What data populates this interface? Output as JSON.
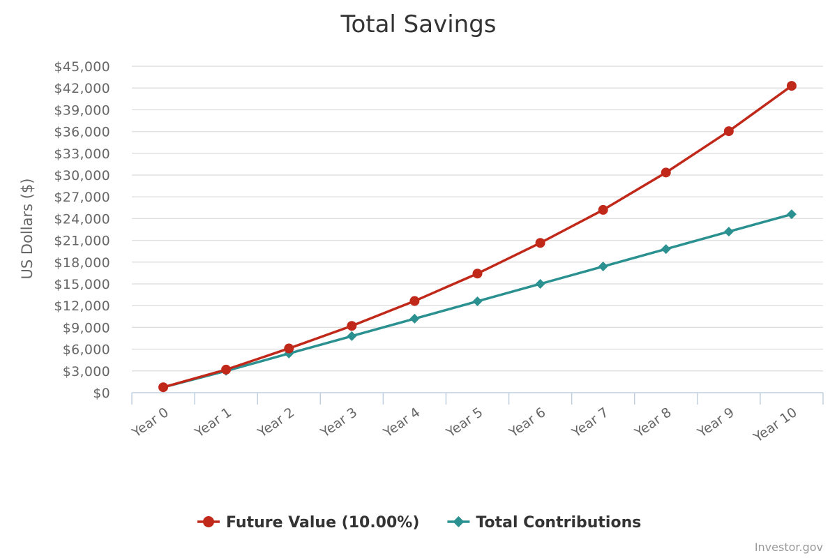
{
  "chart_data": {
    "type": "line",
    "title": "Total Savings",
    "xlabel": "",
    "ylabel": "US Dollars ($)",
    "categories": [
      "Year 0",
      "Year 1",
      "Year 2",
      "Year 3",
      "Year 4",
      "Year 5",
      "Year 6",
      "Year 7",
      "Year 8",
      "Year 9",
      "Year 10"
    ],
    "ylim": [
      0,
      45000
    ],
    "yticks": [
      "$0",
      "$3,000",
      "$6,000",
      "$9,000",
      "$12,000",
      "$15,000",
      "$18,000",
      "$21,000",
      "$24,000",
      "$27,000",
      "$30,000",
      "$33,000",
      "$36,000",
      "$39,000",
      "$42,000",
      "$45,000"
    ],
    "grid": true,
    "legend_position": "bottom",
    "series": [
      {
        "name": "Future Value (10.00%)",
        "color": "#c0291a",
        "marker": "circle",
        "values": [
          750,
          3180,
          6100,
          9210,
          12640,
          16420,
          20650,
          25200,
          30350,
          36050,
          42300
        ]
      },
      {
        "name": "Total Contributions",
        "color": "#2a9090",
        "marker": "diamond",
        "values": [
          750,
          3000,
          5400,
          7800,
          10200,
          12600,
          15000,
          17400,
          19800,
          22200,
          24600
        ]
      }
    ]
  },
  "credit": "Investor.gov"
}
